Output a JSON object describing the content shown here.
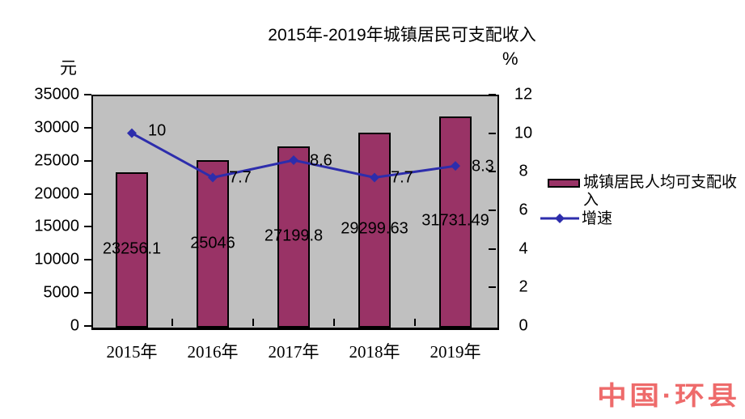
{
  "title": "2015年-2019年城镇居民可支配收入",
  "left_axis": {
    "unit": "元",
    "ticks": [
      "35000",
      "30000",
      "25000",
      "20000",
      "15000",
      "10000",
      "5000",
      "0"
    ]
  },
  "right_axis": {
    "unit": "%",
    "ticks": [
      "12",
      "10",
      "8",
      "6",
      "4",
      "2",
      "0"
    ]
  },
  "chart_data": {
    "type": "bar+line combo",
    "title": "2015年-2019年城镇居民可支配收入",
    "categories": [
      "2015年",
      "2016年",
      "2017年",
      "2018年",
      "2019年"
    ],
    "series": [
      {
        "name": "城镇居民人均可支配收入",
        "type": "bar",
        "axis": "left",
        "color": "#993366",
        "values": [
          23256.1,
          25046,
          27199.8,
          29299.63,
          31731.49
        ],
        "labels": [
          "23256.1",
          "25046",
          "27199.8",
          "29299.63",
          "31731.49"
        ]
      },
      {
        "name": "增速",
        "type": "line",
        "axis": "right",
        "color": "#2d2dac",
        "marker": "diamond",
        "values": [
          10,
          7.7,
          8.6,
          7.7,
          8.3
        ],
        "labels": [
          "10",
          "7.7",
          "8.6",
          "7.7",
          "8.3"
        ]
      }
    ],
    "left_ylim": [
      0,
      35000
    ],
    "left_tick_step": 5000,
    "right_ylim": [
      0,
      12
    ],
    "right_tick_step": 2,
    "left_axis_label": "元",
    "right_axis_label": "%",
    "plot_background": "#c0c0c0",
    "grid": false,
    "legend_position": "right"
  },
  "legend": {
    "items": [
      {
        "label": "城镇居民人均可支配收入",
        "marker": "bar-swatch"
      },
      {
        "label": "增速",
        "marker": "line-diamond"
      }
    ]
  },
  "watermark": {
    "text": "中国·环县",
    "color": "#ee6b6b"
  }
}
